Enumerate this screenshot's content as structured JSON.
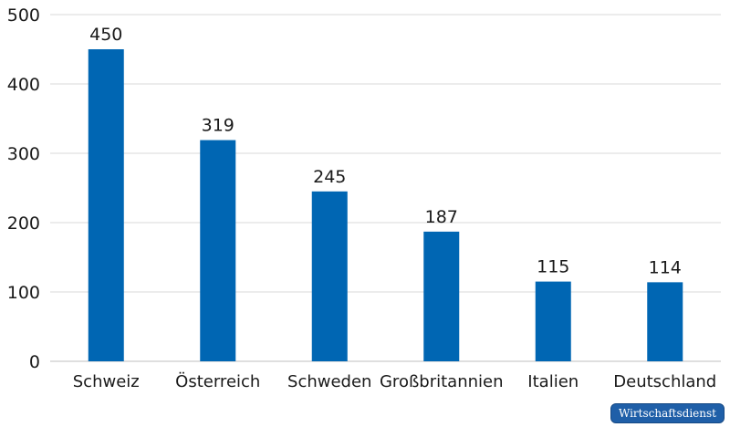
{
  "chart_data": {
    "type": "bar",
    "categories": [
      "Schweiz",
      "Österreich",
      "Schweden",
      "Großbritannien",
      "Italien",
      "Deutschland"
    ],
    "values": [
      450,
      319,
      245,
      187,
      115,
      114
    ],
    "ylim": [
      0,
      500
    ],
    "yticks": [
      0,
      100,
      200,
      300,
      400,
      500
    ],
    "grid": true,
    "data_labels": true,
    "bar_color": "#0066b3"
  },
  "badge": {
    "text": "Wirtschaftsdienst"
  }
}
